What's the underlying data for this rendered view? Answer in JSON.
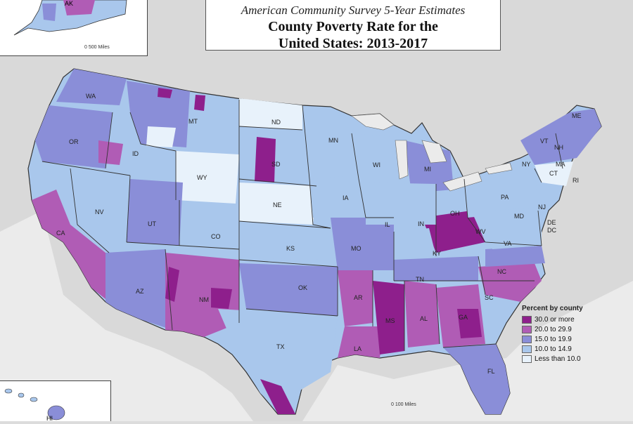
{
  "header": {
    "subtitle": "American Community Survey 5-Year Estimates",
    "title_line1": "County Poverty Rate for the",
    "title_line2": "United States: 2013-2017"
  },
  "legend": {
    "title": "Percent by county",
    "items": [
      {
        "label": "30.0 or more",
        "color": "#8e1f8c"
      },
      {
        "label": "20.0 to 29.9",
        "color": "#b05cb5"
      },
      {
        "label": "15.0 to 19.9",
        "color": "#8a8ed8"
      },
      {
        "label": "10.0 to 14.9",
        "color": "#a9c7ec"
      },
      {
        "label": "Less than 10.0",
        "color": "#e8f2fb"
      }
    ]
  },
  "insets": {
    "ak_label": "AK",
    "ak_scale": "0      500 Miles",
    "hi_label": "HI"
  },
  "main_scale": "0      100 Miles",
  "states": [
    "WA",
    "OR",
    "CA",
    "NV",
    "ID",
    "MT",
    "WY",
    "UT",
    "CO",
    "AZ",
    "NM",
    "ND",
    "SD",
    "NE",
    "KS",
    "OK",
    "TX",
    "MN",
    "IA",
    "MO",
    "AR",
    "LA",
    "WI",
    "IL",
    "MI",
    "IN",
    "OH",
    "KY",
    "TN",
    "MS",
    "AL",
    "GA",
    "FL",
    "SC",
    "NC",
    "VA",
    "WV",
    "PA",
    "NY",
    "VT",
    "NH",
    "ME",
    "MA",
    "CT",
    "RI",
    "NJ",
    "DE",
    "MD",
    "DC"
  ],
  "colors": {
    "background": "#dcdcdc",
    "water": "#e8e8e8",
    "border": "#333333"
  }
}
